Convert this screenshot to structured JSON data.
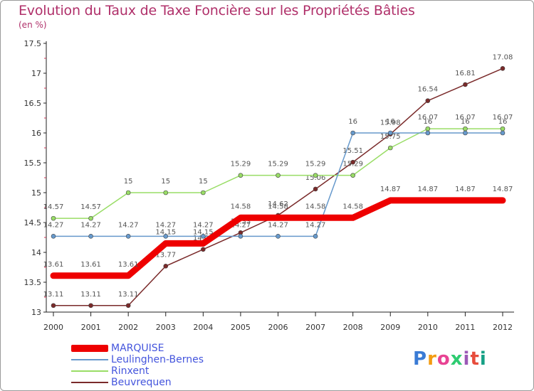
{
  "header": {
    "title": "Evolution du Taux de Taxe Foncière sur les Propriétés Bâties",
    "unit": "(en %)"
  },
  "logo": {
    "text": "Proxiti",
    "colors": [
      "#3a7bd5",
      "#f39c12",
      "#e84393",
      "#2ecc71",
      "#9b59b6",
      "#e74c3c",
      "#16a085"
    ]
  },
  "chart_data": {
    "type": "line",
    "title": "Evolution du Taux de Taxe Foncière sur les Propriétés Bâties",
    "ylabel": "(en %)",
    "xlabel": "",
    "ylim": [
      13,
      17.5
    ],
    "yticks": [
      "13",
      "13.5",
      "14",
      "14.5",
      "15",
      "15.5",
      "16",
      "16.5",
      "17",
      "17.5"
    ],
    "categories": [
      "2000",
      "2001",
      "2002",
      "2003",
      "2004",
      "2005",
      "2006",
      "2007",
      "2008",
      "2009",
      "2010",
      "2011",
      "2012"
    ],
    "series": [
      {
        "name": "Beuvrequen",
        "color": "#7a2a2a",
        "values": [
          13.11,
          13.11,
          13.11,
          13.77,
          14.05,
          14.33,
          14.62,
          15.06,
          15.51,
          15.98,
          16.54,
          16.81,
          17.08
        ],
        "labels": [
          "13.11",
          "13.11",
          "13.11",
          "13.77",
          "14.05",
          "14.33",
          "14.62",
          "15.06",
          "15.51",
          "15.98",
          "16.54",
          "16.81",
          "17.08"
        ]
      },
      {
        "name": "Rinxent",
        "color": "#99dd66",
        "values": [
          14.57,
          14.57,
          15,
          15,
          15,
          15.29,
          15.29,
          15.29,
          15.29,
          15.75,
          16.07,
          16.07,
          16.07
        ],
        "labels": [
          "14.57",
          "14.57",
          "15",
          "15",
          "15",
          "15.29",
          "15.29",
          "15.29",
          "15.29",
          "15.75",
          "16.07",
          "16.07",
          "16.07"
        ]
      },
      {
        "name": "Leulinghen-Bernes",
        "color": "#6699cc",
        "values": [
          14.27,
          14.27,
          14.27,
          14.27,
          14.27,
          14.27,
          14.27,
          14.27,
          16,
          16,
          16,
          16,
          16
        ],
        "labels": [
          "14.27",
          "14.27",
          "14.27",
          "14.27",
          "14.27",
          "14.27",
          "14.27",
          "14.27",
          "16",
          "16",
          "16",
          "16",
          "16"
        ]
      },
      {
        "name": "MARQUISE",
        "color": "#ee0000",
        "values": [
          13.61,
          13.61,
          13.61,
          14.15,
          14.15,
          14.58,
          14.58,
          14.58,
          14.58,
          14.87,
          14.87,
          14.87,
          14.87
        ],
        "labels": [
          "13.61",
          "13.61",
          "13.61",
          "14.15",
          "14.15",
          "14.58",
          "14.58",
          "14.58",
          "14.58",
          "14.87",
          "14.87",
          "14.87",
          "14.87"
        ]
      }
    ],
    "legend": [
      "MARQUISE",
      "Leulinghen-Bernes",
      "Rinxent",
      "Beuvrequen"
    ],
    "legend_position": "bottom-left",
    "grid": false
  }
}
